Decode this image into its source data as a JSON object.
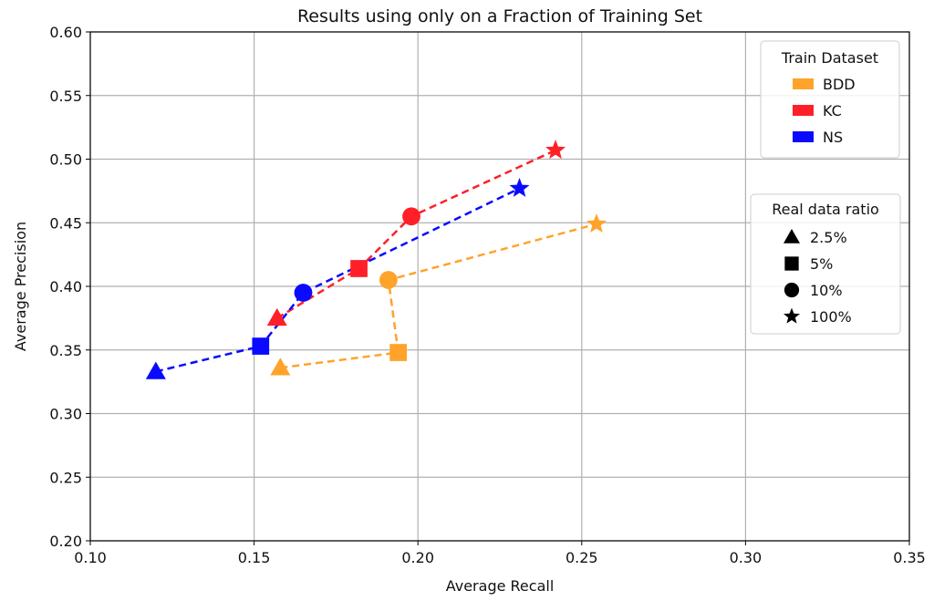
{
  "chart_data": {
    "type": "scatter",
    "title": "Results using only on a Fraction of Training Set",
    "xlabel": "Average Recall",
    "ylabel": "Average Precision",
    "xlim": [
      0.1,
      0.35
    ],
    "ylim": [
      0.2,
      0.6
    ],
    "xticks": [
      "0.10",
      "0.15",
      "0.20",
      "0.25",
      "0.30",
      "0.35"
    ],
    "yticks": [
      "0.20",
      "0.25",
      "0.30",
      "0.35",
      "0.40",
      "0.45",
      "0.50",
      "0.55",
      "0.60"
    ],
    "grid": true,
    "ratios": [
      "2.5%",
      "5%",
      "10%",
      "100%"
    ],
    "markers": [
      "triangle",
      "square",
      "circle",
      "star"
    ],
    "series": [
      {
        "name": "BDD",
        "color": "#FFA32A",
        "x": [
          0.158,
          0.194,
          0.191,
          0.2545
        ],
        "y": [
          0.336,
          0.348,
          0.405,
          0.449
        ]
      },
      {
        "name": "KC",
        "color": "#FF1F28",
        "x": [
          0.157,
          0.182,
          0.198,
          0.242
        ],
        "y": [
          0.375,
          0.414,
          0.455,
          0.507
        ]
      },
      {
        "name": "NS",
        "color": "#0A0AFF",
        "x": [
          0.12,
          0.152,
          0.165,
          0.231
        ],
        "y": [
          0.333,
          0.353,
          0.395,
          0.477
        ]
      }
    ],
    "legend_dataset": {
      "title": "Train Dataset",
      "placement": "top-right"
    },
    "legend_ratio": {
      "title": "Real data ratio",
      "placement": "center-right"
    }
  }
}
